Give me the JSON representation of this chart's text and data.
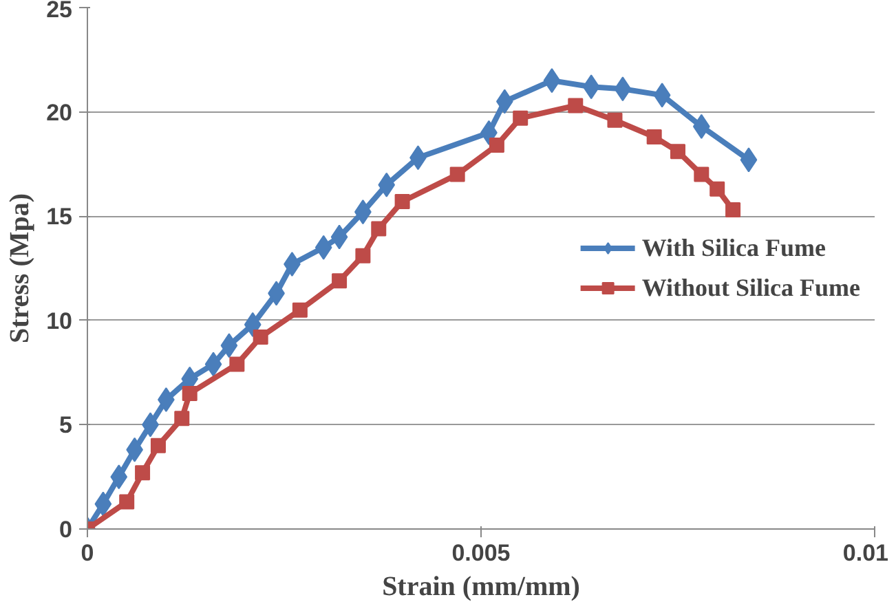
{
  "chart_data": {
    "type": "line",
    "xlabel": "Strain (mm/mm)",
    "ylabel": "Stress (Mpa)",
    "xlim": [
      0,
      0.01
    ],
    "xticks": [
      0,
      0.005,
      0.01
    ],
    "ylim": [
      0,
      25
    ],
    "yticks": [
      0,
      5,
      10,
      15,
      20,
      25
    ],
    "grid": "y",
    "legend": "right",
    "series": [
      {
        "name": "With Silica Fume",
        "color": "#4a7ebb",
        "marker": "diamond",
        "x": [
          0,
          0.0002,
          0.0004,
          0.0006,
          0.0008,
          0.001,
          0.0013,
          0.0016,
          0.0018,
          0.0021,
          0.0024,
          0.0026,
          0.003,
          0.0032,
          0.0035,
          0.0038,
          0.0042,
          0.0051,
          0.0053,
          0.0059,
          0.0064,
          0.0068,
          0.0073,
          0.0078,
          0.0084
        ],
        "values": [
          0,
          1.2,
          2.5,
          3.8,
          5,
          6.2,
          7.2,
          7.9,
          8.8,
          9.8,
          11.3,
          12.7,
          13.5,
          14,
          15.2,
          16.5,
          17.8,
          19,
          20.5,
          21.5,
          21.2,
          21.1,
          20.8,
          19.3,
          17.7
        ]
      },
      {
        "name": "Without Silica Fume",
        "color": "#be4b48",
        "marker": "square",
        "x": [
          0,
          0.0005,
          0.0007,
          0.0009,
          0.0012,
          0.0013,
          0.0019,
          0.0022,
          0.0027,
          0.0032,
          0.0035,
          0.0037,
          0.004,
          0.0047,
          0.0052,
          0.0055,
          0.0062,
          0.0067,
          0.0072,
          0.0075,
          0.0078,
          0.008,
          0.0082
        ],
        "values": [
          0,
          1.3,
          2.7,
          4,
          5.3,
          6.5,
          7.9,
          9.2,
          10.5,
          11.9,
          13.1,
          14.4,
          15.7,
          17,
          18.4,
          19.7,
          20.3,
          19.6,
          18.8,
          18.1,
          17,
          16.3,
          15.3
        ]
      }
    ]
  }
}
